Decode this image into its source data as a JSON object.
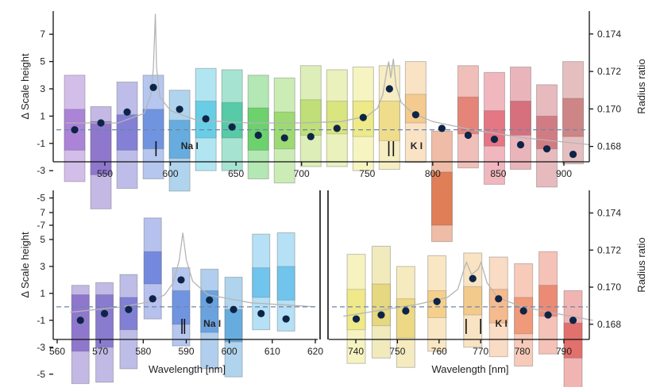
{
  "colors": {
    "model_line": "#b5b5b5",
    "baseline": "#6d86a8",
    "points": "#0d2447",
    "axis": "#111111"
  },
  "chart_data": [
    {
      "type": "scatter",
      "panel": "top",
      "xlabel": "",
      "ylabel": "Δ Scale height",
      "y2label": "Radius ratio",
      "xlim": [
        515,
        925
      ],
      "ylim": [
        -8.2,
        9.5
      ],
      "y2lim": [
        0.16718,
        0.17522
      ],
      "xticks": [
        "550",
        "600",
        "650",
        "700",
        "750",
        "800",
        "850",
        "900"
      ],
      "yticks": [
        "7",
        "5",
        "3",
        "1",
        "-1",
        "-3",
        "-5",
        "-7"
      ],
      "y2ticks": [
        "0.174",
        "0.172",
        "0.170",
        "0.168"
      ],
      "baseline": 0.0,
      "annotations": [
        {
          "text": "Na I",
          "x": 608,
          "marks": [
            589
          ]
        },
        {
          "text": "K I",
          "x": 783,
          "marks": [
            766.5,
            770
          ]
        }
      ],
      "bins": [
        {
          "x": 527,
          "y": 0.0,
          "in": [
            -1.5,
            1.5
          ],
          "out": [
            -3.8,
            4.0
          ],
          "color": "#9e6fd0"
        },
        {
          "x": 547,
          "y": 0.5,
          "in": [
            -3.3,
            0.6
          ],
          "out": [
            -5.8,
            1.7
          ],
          "color": "#7d62c5"
        },
        {
          "x": 567,
          "y": 1.3,
          "in": [
            -1.5,
            1.1
          ],
          "out": [
            -4.3,
            3.5
          ],
          "color": "#6f6ccf"
        },
        {
          "x": 587,
          "y": 3.1,
          "in": [
            -1.4,
            1.5
          ],
          "out": [
            -3.6,
            4.0
          ],
          "color": "#5b83dc"
        },
        {
          "x": 607,
          "y": 1.5,
          "in": [
            -2.1,
            0.7
          ],
          "out": [
            -4.5,
            2.9
          ],
          "color": "#4f9fd8"
        },
        {
          "x": 627,
          "y": 0.8,
          "in": [
            -0.6,
            2.1
          ],
          "out": [
            -3.0,
            4.5
          ],
          "color": "#52c6e0"
        },
        {
          "x": 647,
          "y": 0.2,
          "in": [
            -0.6,
            2.0
          ],
          "out": [
            -3.0,
            4.4
          ],
          "color": "#3cc29a"
        },
        {
          "x": 667,
          "y": -0.4,
          "in": [
            -1.5,
            1.6
          ],
          "out": [
            -3.6,
            4.0
          ],
          "color": "#56c957"
        },
        {
          "x": 687,
          "y": -0.6,
          "in": [
            -1.4,
            1.3
          ],
          "out": [
            -3.9,
            3.8
          ],
          "color": "#8fd45e"
        },
        {
          "x": 707,
          "y": -0.5,
          "in": [
            -0.4,
            2.2
          ],
          "out": [
            -2.7,
            4.7
          ],
          "color": "#b5d963"
        },
        {
          "x": 727,
          "y": 0.1,
          "in": [
            -0.3,
            2.1
          ],
          "out": [
            -2.7,
            4.4
          ],
          "color": "#d3e06a"
        },
        {
          "x": 747,
          "y": 0.9,
          "in": [
            -0.5,
            2.1
          ],
          "out": [
            -3.0,
            4.6
          ],
          "color": "#ebe676"
        },
        {
          "x": 767,
          "y": 3.0,
          "in": [
            -0.8,
            2.1
          ],
          "out": [
            -2.9,
            4.7
          ],
          "color": "#ecd77a"
        },
        {
          "x": 787,
          "y": 1.1,
          "in": [
            0.5,
            2.6
          ],
          "out": [
            -2.4,
            5.0
          ],
          "color": "#f1c27c"
        },
        {
          "x": 807,
          "y": 0.1,
          "in": [
            -7.0,
            -3.1
          ],
          "out": [
            -8.2,
            -0.1
          ],
          "color": "#d96a3c"
        },
        {
          "x": 827,
          "y": -0.4,
          "in": [
            -0.3,
            2.4
          ],
          "out": [
            -2.8,
            4.7
          ],
          "color": "#e07063"
        },
        {
          "x": 847,
          "y": -0.7,
          "in": [
            -1.2,
            1.4
          ],
          "out": [
            -4.0,
            4.2
          ],
          "color": "#e06070"
        },
        {
          "x": 867,
          "y": -1.1,
          "in": [
            -0.4,
            2.1
          ],
          "out": [
            -2.9,
            4.6
          ],
          "color": "#cf5a68"
        },
        {
          "x": 887,
          "y": -1.4,
          "in": [
            -1.4,
            1.0
          ],
          "out": [
            -4.2,
            3.3
          ],
          "color": "#c9676f"
        },
        {
          "x": 907,
          "y": -1.8,
          "in": [
            -0.5,
            2.3
          ],
          "out": [
            -2.5,
            5.0
          ],
          "color": "#c67171"
        }
      ],
      "model": [
        [
          520,
          0.5
        ],
        [
          560,
          0.5
        ],
        [
          580,
          1.2
        ],
        [
          585,
          2.5
        ],
        [
          587,
          4.5
        ],
        [
          588.5,
          8.5
        ],
        [
          589.5,
          4.5
        ],
        [
          592,
          2.4
        ],
        [
          600,
          1.4
        ],
        [
          620,
          0.7
        ],
        [
          660,
          0.5
        ],
        [
          700,
          0.5
        ],
        [
          730,
          0.6
        ],
        [
          750,
          1.0
        ],
        [
          758,
          1.6
        ],
        [
          762,
          2.6
        ],
        [
          765,
          4.4
        ],
        [
          766.5,
          5.0
        ],
        [
          768,
          3.8
        ],
        [
          770,
          5.2
        ],
        [
          772,
          3.2
        ],
        [
          776,
          2.0
        ],
        [
          785,
          1.2
        ],
        [
          800,
          0.6
        ],
        [
          830,
          0.0
        ],
        [
          870,
          -0.6
        ],
        [
          920,
          -1.1
        ]
      ]
    },
    {
      "type": "scatter",
      "panel": "bottom-left",
      "xlabel": "Wavelength [nm]",
      "ylabel": "Δ Scale height",
      "xlim": [
        560,
        621
      ],
      "ylim": [
        -8.2,
        9.5
      ],
      "xticks": [
        "560",
        "570",
        "580",
        "590",
        "600",
        "610",
        "620"
      ],
      "yticks": [
        "7",
        "5",
        "3",
        "1",
        "-1",
        "-3",
        "-5",
        "-7"
      ],
      "baseline": 0.0,
      "annotations": [
        {
          "text": "Na I",
          "x": 594,
          "marks": [
            589,
            589.6
          ]
        }
      ],
      "bins": [
        {
          "x": 565.4,
          "y": -1.0,
          "in": [
            -3.3,
            0.9
          ],
          "out": [
            -5.7,
            1.6
          ],
          "color": "#7d62c5"
        },
        {
          "x": 571.0,
          "y": -0.5,
          "in": [
            -3.0,
            0.9
          ],
          "out": [
            -5.6,
            1.8
          ],
          "color": "#7566c6"
        },
        {
          "x": 576.6,
          "y": -0.2,
          "in": [
            -1.7,
            0.7
          ],
          "out": [
            -4.6,
            2.4
          ],
          "color": "#6d6ccd"
        },
        {
          "x": 582.2,
          "y": 0.6,
          "in": [
            1.7,
            4.1
          ],
          "out": [
            -0.9,
            6.6
          ],
          "color": "#5d76d8"
        },
        {
          "x": 588.8,
          "y": 2.0,
          "in": [
            -1.3,
            1.2
          ],
          "out": [
            -2.9,
            2.9
          ],
          "color": "#5b83dc"
        },
        {
          "x": 595.4,
          "y": 0.5,
          "in": [
            -1.9,
            1.2
          ],
          "out": [
            -4.6,
            2.8
          ],
          "color": "#5393da"
        },
        {
          "x": 601.0,
          "y": -0.2,
          "in": [
            -2.6,
            -0.2
          ],
          "out": [
            -5.2,
            2.2
          ],
          "color": "#4f9fd8"
        },
        {
          "x": 607.4,
          "y": -0.5,
          "in": [
            0.7,
            2.9
          ],
          "out": [
            -1.7,
            5.4
          ],
          "color": "#5bbbe8"
        },
        {
          "x": 613.2,
          "y": -0.9,
          "in": [
            0.5,
            3.0
          ],
          "out": [
            -1.8,
            5.5
          ],
          "color": "#5bbbe8"
        }
      ],
      "model": [
        [
          563,
          -0.4
        ],
        [
          575,
          0.0
        ],
        [
          582,
          0.4
        ],
        [
          585,
          0.9
        ],
        [
          587,
          1.8
        ],
        [
          588.4,
          3.5
        ],
        [
          589.2,
          5.5
        ],
        [
          590,
          3.5
        ],
        [
          591.5,
          1.9
        ],
        [
          595,
          0.9
        ],
        [
          605,
          0.3
        ],
        [
          620,
          0.0
        ]
      ]
    },
    {
      "type": "scatter",
      "panel": "bottom-right",
      "xlabel": "Wavelength [nm]",
      "ylabel": "",
      "y2label": "Radius ratio",
      "xlim": [
        734,
        798
      ],
      "ylim": [
        -8.2,
        9.5
      ],
      "y2lim": [
        0.16718,
        0.17522
      ],
      "xticks": [
        "740",
        "750",
        "760",
        "770",
        "780",
        "790"
      ],
      "y2ticks": [
        "0.174",
        "0.172",
        "0.170",
        "0.168"
      ],
      "baseline": 0.0,
      "annotations": [
        {
          "text": "K I",
          "x": 773.5,
          "marks": [
            766.5,
            770.0
          ]
        }
      ],
      "bins": [
        {
          "x": 740.1,
          "y": -0.9,
          "in": [
            -1.7,
            1.3
          ],
          "out": [
            -4.2,
            3.9
          ],
          "color": "#ece575"
        },
        {
          "x": 746.1,
          "y": -0.6,
          "in": [
            -1.4,
            1.7
          ],
          "out": [
            -3.8,
            4.5
          ],
          "color": "#e1d06d"
        },
        {
          "x": 752.0,
          "y": -0.3,
          "in": [
            -2.3,
            0.6
          ],
          "out": [
            -4.5,
            3.0
          ],
          "color": "#e9d372"
        },
        {
          "x": 759.5,
          "y": 0.4,
          "in": [
            -0.8,
            1.2
          ],
          "out": [
            -3.3,
            3.8
          ],
          "color": "#f2c87a"
        },
        {
          "x": 768.1,
          "y": 2.1,
          "in": [
            -0.6,
            1.5
          ],
          "out": [
            -3.0,
            4.0
          ],
          "color": "#f0c17a"
        },
        {
          "x": 774.3,
          "y": 0.6,
          "in": [
            -1.2,
            1.3
          ],
          "out": [
            -3.7,
            3.7
          ],
          "color": "#f3b07c"
        },
        {
          "x": 780.3,
          "y": -0.3,
          "in": [
            -2.0,
            0.7
          ],
          "out": [
            -4.4,
            3.2
          ],
          "color": "#ee8a64"
        },
        {
          "x": 786.2,
          "y": -0.6,
          "in": [
            -0.7,
            1.6
          ],
          "out": [
            -3.5,
            4.1
          ],
          "color": "#e8785f"
        },
        {
          "x": 792.2,
          "y": -1.0,
          "in": [
            -3.8,
            -1.2
          ],
          "out": [
            -7.3,
            1.2
          ],
          "color": "#dd5a56"
        }
      ],
      "model": [
        [
          737,
          -0.7
        ],
        [
          745,
          -0.3
        ],
        [
          755,
          0.2
        ],
        [
          762,
          0.7
        ],
        [
          764.5,
          1.3
        ],
        [
          766.0,
          2.8
        ],
        [
          766.6,
          3.3
        ],
        [
          767.8,
          2.4
        ],
        [
          769.4,
          2.8
        ],
        [
          770.1,
          3.3
        ],
        [
          771.5,
          1.8
        ],
        [
          774,
          0.7
        ],
        [
          780,
          0.0
        ],
        [
          790,
          -0.6
        ],
        [
          797,
          -1.0
        ]
      ]
    }
  ]
}
